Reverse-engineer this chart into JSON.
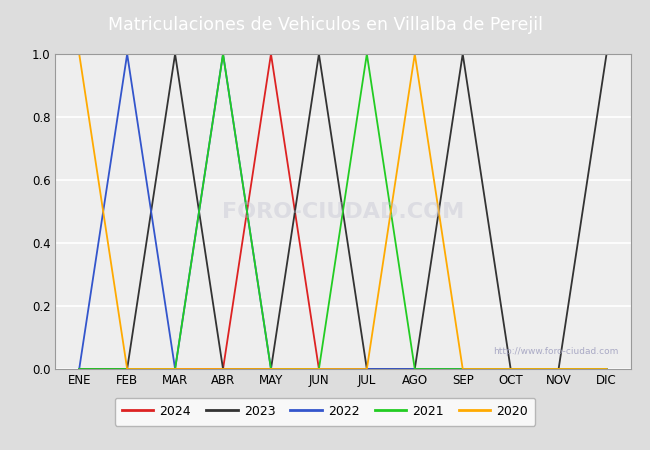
{
  "title": "Matriculaciones de Vehiculos en Villalba de Perejil",
  "title_color": "#ffffff",
  "title_bg_color": "#5588cc",
  "months": [
    "ENE",
    "FEB",
    "MAR",
    "ABR",
    "MAY",
    "JUN",
    "JUL",
    "AGO",
    "SEP",
    "OCT",
    "NOV",
    "DIC"
  ],
  "series": [
    {
      "label": "2024",
      "color": "#dd2222",
      "peaks": [
        4
      ]
    },
    {
      "label": "2023",
      "color": "#333333",
      "peaks": [
        2,
        5,
        8,
        11
      ]
    },
    {
      "label": "2022",
      "color": "#3355cc",
      "peaks": [
        1,
        3
      ]
    },
    {
      "label": "2021",
      "color": "#22cc22",
      "peaks": [
        3,
        6
      ]
    },
    {
      "label": "2020",
      "color": "#ffaa00",
      "peaks": [
        0,
        7
      ]
    }
  ],
  "ylim": [
    0.0,
    1.0
  ],
  "bg_color": "#dddddd",
  "plot_bg_color": "#eeeeee",
  "grid_color": "#ffffff",
  "watermark_url": "http://www.foro-ciudad.com",
  "watermark_center": "FORO-CIUDAD.COM"
}
